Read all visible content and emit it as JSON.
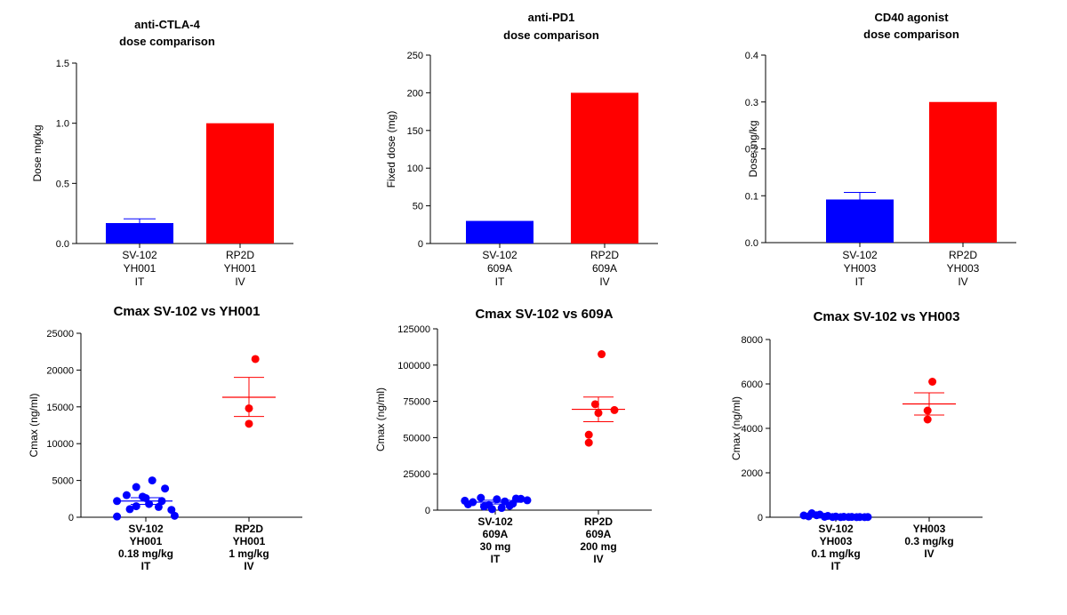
{
  "colors": {
    "blue": "#0000ff",
    "red": "#ff0000"
  },
  "chart_data": [
    {
      "type": "bar",
      "title": [
        "anti-CTLA-4",
        "dose comparison"
      ],
      "ylabel": "Dose mg/kg",
      "ylim": [
        0,
        1.5
      ],
      "yticks": [
        0,
        0.5,
        1,
        1.5
      ],
      "ytick_labels": [
        "0.0",
        "0.5",
        "1.0",
        "1.5"
      ],
      "categories": [
        [
          "SV-102",
          "YH001",
          "IT"
        ],
        [
          "RP2D",
          "YH001",
          "IV"
        ]
      ],
      "values": [
        0.17,
        1.0
      ],
      "errors": [
        0.035,
        null
      ],
      "colors": [
        "blue",
        "red"
      ]
    },
    {
      "type": "bar",
      "title": [
        "anti-PD1",
        "dose comparison"
      ],
      "ylabel": "Fixed dose (mg)",
      "ylim": [
        0,
        250
      ],
      "yticks": [
        0,
        50,
        100,
        150,
        200,
        250
      ],
      "ytick_labels": [
        "0",
        "50",
        "100",
        "150",
        "200",
        "250"
      ],
      "categories": [
        [
          "SV-102",
          "609A",
          "IT"
        ],
        [
          "RP2D",
          "609A",
          "IV"
        ]
      ],
      "values": [
        30,
        200
      ],
      "errors": [
        null,
        null
      ],
      "colors": [
        "blue",
        "red"
      ]
    },
    {
      "type": "bar",
      "title": [
        "CD40 agonist",
        "dose comparison"
      ],
      "ylabel": "Dose mg/kg",
      "ylim": [
        0,
        0.4
      ],
      "yticks": [
        0,
        0.1,
        0.2,
        0.3,
        0.4
      ],
      "ytick_labels": [
        "0.0",
        "0.1",
        "0.2",
        "0.3",
        "0.4"
      ],
      "categories": [
        [
          "SV-102",
          "YH003",
          "IT"
        ],
        [
          "RP2D",
          "YH003",
          "IV"
        ]
      ],
      "values": [
        0.092,
        0.3
      ],
      "errors": [
        0.015,
        null
      ],
      "colors": [
        "blue",
        "red"
      ]
    },
    {
      "type": "scatter",
      "title": [
        "Cmax SV-102 vs YH001"
      ],
      "ylabel": "Cmax (ng/ml)",
      "ylim": [
        0,
        25000
      ],
      "yticks": [
        0,
        5000,
        10000,
        15000,
        20000,
        25000
      ],
      "ytick_labels": [
        "0",
        "5000",
        "10000",
        "15000",
        "20000",
        "25000"
      ],
      "categories": [
        [
          "SV-102",
          "YH001",
          "0.18 mg/kg",
          "IT"
        ],
        [
          "RP2D",
          "YH001",
          "1 mg/kg",
          "IV"
        ]
      ],
      "groups": [
        {
          "color": "blue",
          "points": [
            [
              -0.9,
              2200
            ],
            [
              -0.6,
              3000
            ],
            [
              -0.3,
              4100
            ],
            [
              0.2,
              5000
            ],
            [
              0.6,
              3900
            ],
            [
              -0.9,
              100
            ],
            [
              -0.3,
              1500
            ],
            [
              0.0,
              2600
            ],
            [
              0.4,
              1400
            ],
            [
              0.9,
              200
            ],
            [
              -0.5,
              1100
            ],
            [
              0.5,
              2200
            ],
            [
              0.1,
              1800
            ],
            [
              -0.1,
              2800
            ],
            [
              0.8,
              1000
            ]
          ],
          "mean": 2200,
          "sem_low": 1750,
          "sem_high": 2650
        },
        {
          "color": "red",
          "points": [
            [
              0.2,
              21500
            ],
            [
              0.0,
              14800
            ],
            [
              0.0,
              12700
            ]
          ],
          "mean": 16300,
          "sem_low": 13700,
          "sem_high": 19000
        }
      ]
    },
    {
      "type": "scatter",
      "title": [
        "Cmax SV-102 vs 609A"
      ],
      "ylabel": "Cmax (ng/ml)",
      "ylim": [
        0,
        125000
      ],
      "yticks": [
        0,
        25000,
        50000,
        75000,
        100000,
        125000
      ],
      "ytick_labels": [
        "0",
        "25000",
        "50000",
        "75000",
        "100000",
        "125000"
      ],
      "categories": [
        [
          "SV-102",
          "609A",
          "30 mg",
          "IT"
        ],
        [
          "RP2D",
          "609A",
          "200 mg",
          "IV"
        ]
      ],
      "groups": [
        {
          "color": "blue",
          "points": [
            [
              -0.95,
              6500
            ],
            [
              -0.7,
              5500
            ],
            [
              -0.45,
              8500
            ],
            [
              -0.2,
              3500
            ],
            [
              0.05,
              7500
            ],
            [
              0.3,
              6000
            ],
            [
              0.55,
              4500
            ],
            [
              0.8,
              7800
            ],
            [
              1.0,
              6800
            ],
            [
              -0.85,
              4000
            ],
            [
              -0.35,
              2500
            ],
            [
              -0.1,
              700
            ],
            [
              0.2,
              1500
            ],
            [
              0.45,
              3000
            ],
            [
              0.65,
              8000
            ]
          ],
          "mean": 5500,
          "sem_low": 4200,
          "sem_high": 6800
        },
        {
          "color": "red",
          "points": [
            [
              0.1,
              107500
            ],
            [
              0.5,
              69000
            ],
            [
              -0.1,
              73000
            ],
            [
              0.0,
              67000
            ],
            [
              -0.3,
              52000
            ],
            [
              -0.3,
              46500
            ]
          ],
          "mean": 69500,
          "sem_low": 61000,
          "sem_high": 78000
        }
      ]
    },
    {
      "type": "scatter",
      "title": [
        "Cmax SV-102 vs YH003"
      ],
      "ylabel": "Cmax (ng/ml)",
      "ylim": [
        0,
        8000
      ],
      "yticks": [
        0,
        2000,
        4000,
        6000,
        8000
      ],
      "ytick_labels": [
        "0",
        "2000",
        "4000",
        "6000",
        "8000"
      ],
      "categories": [
        [
          "SV-102",
          "YH003",
          "0.1 mg/kg",
          "IT"
        ],
        [
          "YH003",
          "0.3 mg/kg",
          "IV"
        ]
      ],
      "groups": [
        {
          "color": "blue",
          "points": [
            [
              -1.0,
              80
            ],
            [
              -0.75,
              180
            ],
            [
              -0.5,
              120
            ],
            [
              -0.25,
              60
            ],
            [
              0.0,
              30
            ],
            [
              0.25,
              20
            ],
            [
              0.5,
              15
            ],
            [
              0.75,
              10
            ],
            [
              1.0,
              10
            ],
            [
              -0.85,
              40
            ],
            [
              -0.6,
              90
            ],
            [
              -0.35,
              20
            ],
            [
              -0.1,
              10
            ],
            [
              0.15,
              5
            ],
            [
              0.4,
              10
            ],
            [
              0.65,
              5
            ],
            [
              0.9,
              5
            ]
          ],
          "mean": 40,
          "sem_low": 10,
          "sem_high": 70
        },
        {
          "color": "red",
          "points": [
            [
              0.1,
              6100
            ],
            [
              -0.05,
              4800
            ],
            [
              -0.05,
              4400
            ]
          ],
          "mean": 5100,
          "sem_low": 4600,
          "sem_high": 5600
        }
      ]
    }
  ]
}
